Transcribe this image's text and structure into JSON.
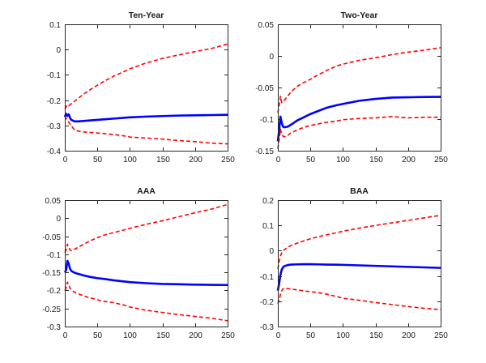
{
  "figure": {
    "background": "#ffffff",
    "colors": {
      "median": "#0000ff",
      "band": "#ff0000",
      "axis": "#262626",
      "text": "#1a1a1a"
    }
  },
  "chart_data": [
    {
      "type": "line",
      "title": "Ten-Year",
      "xlabel": "",
      "ylabel": "",
      "xlim": [
        0,
        250
      ],
      "ylim": [
        -0.4,
        0.1
      ],
      "grid": false,
      "legend": "none",
      "xticks": [
        0,
        50,
        100,
        150,
        200,
        250
      ],
      "xtick_labels": [
        "0",
        "50",
        "100",
        "150",
        "200",
        "250"
      ],
      "yticks": [
        0.1,
        0,
        -0.1,
        -0.2,
        -0.3,
        -0.4
      ],
      "ytick_labels": [
        "0.1",
        "0",
        "-0.1",
        "-0.2",
        "-0.3",
        "-0.4"
      ],
      "x": [
        0,
        2,
        4,
        6,
        8,
        10,
        15,
        20,
        30,
        40,
        50,
        60,
        75,
        90,
        100,
        125,
        150,
        175,
        200,
        225,
        250
      ],
      "series": [
        {
          "name": "upper-band",
          "style": "dashed",
          "color": "#ff0000",
          "width": 1.6,
          "values": [
            -0.235,
            -0.226,
            -0.218,
            -0.222,
            -0.218,
            -0.214,
            -0.204,
            -0.194,
            -0.174,
            -0.157,
            -0.141,
            -0.126,
            -0.105,
            -0.088,
            -0.076,
            -0.053,
            -0.035,
            -0.021,
            -0.008,
            0.004,
            0.022
          ]
        },
        {
          "name": "lower-band",
          "style": "dashed",
          "color": "#ff0000",
          "width": 1.6,
          "values": [
            -0.262,
            -0.272,
            -0.28,
            -0.287,
            -0.294,
            -0.302,
            -0.318,
            -0.322,
            -0.326,
            -0.328,
            -0.33,
            -0.332,
            -0.336,
            -0.341,
            -0.346,
            -0.35,
            -0.354,
            -0.36,
            -0.364,
            -0.37,
            -0.373
          ]
        },
        {
          "name": "median",
          "style": "solid",
          "color": "#0000ff",
          "width": 2.6,
          "values": [
            -0.266,
            -0.254,
            -0.262,
            -0.256,
            -0.27,
            -0.278,
            -0.284,
            -0.284,
            -0.282,
            -0.28,
            -0.278,
            -0.276,
            -0.273,
            -0.27,
            -0.268,
            -0.265,
            -0.263,
            -0.261,
            -0.26,
            -0.259,
            -0.258
          ]
        }
      ]
    },
    {
      "type": "line",
      "title": "Two-Year",
      "xlabel": "",
      "ylabel": "",
      "xlim": [
        0,
        250
      ],
      "ylim": [
        -0.15,
        0.05
      ],
      "grid": false,
      "legend": "none",
      "xticks": [
        0,
        50,
        100,
        150,
        200,
        250
      ],
      "xtick_labels": [
        "0",
        "50",
        "100",
        "150",
        "200",
        "250"
      ],
      "yticks": [
        0.05,
        0,
        -0.05,
        -0.1,
        -0.15
      ],
      "ytick_labels": [
        "0.05",
        "0",
        "-0.05",
        "-0.1",
        "-0.15"
      ],
      "x": [
        0,
        2,
        4,
        6,
        8,
        10,
        15,
        20,
        30,
        40,
        50,
        60,
        75,
        90,
        100,
        125,
        150,
        175,
        200,
        225,
        250
      ],
      "series": [
        {
          "name": "upper-band",
          "style": "dashed",
          "color": "#ff0000",
          "width": 1.6,
          "values": [
            -0.09,
            -0.079,
            -0.064,
            -0.074,
            -0.072,
            -0.07,
            -0.064,
            -0.057,
            -0.048,
            -0.042,
            -0.037,
            -0.031,
            -0.023,
            -0.016,
            -0.013,
            -0.007,
            -0.003,
            0.002,
            0.006,
            0.009,
            0.013
          ]
        },
        {
          "name": "lower-band",
          "style": "dashed",
          "color": "#ff0000",
          "width": 1.6,
          "values": [
            -0.147,
            -0.133,
            -0.116,
            -0.124,
            -0.127,
            -0.128,
            -0.126,
            -0.122,
            -0.117,
            -0.113,
            -0.11,
            -0.108,
            -0.105,
            -0.103,
            -0.101,
            -0.099,
            -0.098,
            -0.096,
            -0.098,
            -0.097,
            -0.097
          ]
        },
        {
          "name": "median",
          "style": "solid",
          "color": "#0000ff",
          "width": 2.6,
          "values": [
            -0.135,
            -0.118,
            -0.096,
            -0.106,
            -0.112,
            -0.113,
            -0.112,
            -0.109,
            -0.102,
            -0.097,
            -0.092,
            -0.088,
            -0.082,
            -0.078,
            -0.076,
            -0.071,
            -0.068,
            -0.066,
            -0.0655,
            -0.065,
            -0.0648
          ]
        }
      ]
    },
    {
      "type": "line",
      "title": "AAA",
      "xlabel": "",
      "ylabel": "",
      "xlim": [
        0,
        250
      ],
      "ylim": [
        -0.3,
        0.05
      ],
      "grid": false,
      "legend": "none",
      "xticks": [
        0,
        50,
        100,
        150,
        200,
        250
      ],
      "xtick_labels": [
        "0",
        "50",
        "100",
        "150",
        "200",
        "250"
      ],
      "yticks": [
        0.05,
        0,
        -0.05,
        -0.1,
        -0.15,
        -0.2,
        -0.25,
        -0.3
      ],
      "ytick_labels": [
        "0.05",
        "0",
        "-0.05",
        "-0.1",
        "-0.15",
        "-0.2",
        "-0.25",
        "-0.3"
      ],
      "x": [
        0,
        2,
        4,
        6,
        8,
        10,
        15,
        20,
        30,
        40,
        50,
        60,
        75,
        90,
        100,
        125,
        150,
        175,
        200,
        225,
        250
      ],
      "series": [
        {
          "name": "upper-band",
          "style": "dashed",
          "color": "#ff0000",
          "width": 1.6,
          "values": [
            -0.095,
            -0.088,
            -0.072,
            -0.08,
            -0.088,
            -0.09,
            -0.086,
            -0.081,
            -0.071,
            -0.062,
            -0.054,
            -0.047,
            -0.04,
            -0.033,
            -0.028,
            -0.017,
            -0.007,
            0.004,
            0.015,
            0.025,
            0.038
          ]
        },
        {
          "name": "lower-band",
          "style": "dashed",
          "color": "#ff0000",
          "width": 1.6,
          "values": [
            -0.2,
            -0.193,
            -0.177,
            -0.185,
            -0.194,
            -0.199,
            -0.205,
            -0.209,
            -0.216,
            -0.221,
            -0.226,
            -0.23,
            -0.234,
            -0.24,
            -0.246,
            -0.255,
            -0.261,
            -0.267,
            -0.272,
            -0.277,
            -0.284
          ]
        },
        {
          "name": "median",
          "style": "solid",
          "color": "#0000ff",
          "width": 2.6,
          "values": [
            -0.15,
            -0.144,
            -0.118,
            -0.126,
            -0.14,
            -0.146,
            -0.151,
            -0.154,
            -0.159,
            -0.163,
            -0.166,
            -0.168,
            -0.172,
            -0.175,
            -0.177,
            -0.18,
            -0.182,
            -0.183,
            -0.184,
            -0.1845,
            -0.185
          ]
        }
      ]
    },
    {
      "type": "line",
      "title": "BAA",
      "xlabel": "",
      "ylabel": "",
      "xlim": [
        0,
        250
      ],
      "ylim": [
        -0.3,
        0.2
      ],
      "grid": false,
      "legend": "none",
      "xticks": [
        0,
        50,
        100,
        150,
        200,
        250
      ],
      "xtick_labels": [
        "0",
        "50",
        "100",
        "150",
        "200",
        "250"
      ],
      "yticks": [
        0.2,
        0.1,
        0,
        -0.1,
        -0.2,
        -0.3
      ],
      "ytick_labels": [
        "0.2",
        "0.1",
        "0",
        "-0.1",
        "-0.2",
        "-0.3"
      ],
      "x": [
        0,
        2,
        4,
        6,
        8,
        10,
        15,
        20,
        30,
        40,
        50,
        60,
        75,
        90,
        100,
        125,
        150,
        175,
        200,
        225,
        250
      ],
      "series": [
        {
          "name": "upper-band",
          "style": "dashed",
          "color": "#ff0000",
          "width": 1.6,
          "values": [
            -0.072,
            -0.045,
            -0.022,
            -0.008,
            0.0,
            0.004,
            0.013,
            0.02,
            0.03,
            0.039,
            0.047,
            0.054,
            0.063,
            0.071,
            0.077,
            0.089,
            0.1,
            0.11,
            0.12,
            0.13,
            0.14
          ]
        },
        {
          "name": "lower-band",
          "style": "dashed",
          "color": "#ff0000",
          "width": 1.6,
          "values": [
            -0.21,
            -0.195,
            -0.172,
            -0.158,
            -0.151,
            -0.148,
            -0.15,
            -0.152,
            -0.155,
            -0.159,
            -0.162,
            -0.165,
            -0.172,
            -0.181,
            -0.188,
            -0.196,
            -0.205,
            -0.213,
            -0.221,
            -0.228,
            -0.233
          ]
        },
        {
          "name": "median",
          "style": "solid",
          "color": "#0000ff",
          "width": 2.6,
          "values": [
            -0.158,
            -0.13,
            -0.095,
            -0.075,
            -0.066,
            -0.061,
            -0.057,
            -0.055,
            -0.054,
            -0.0535,
            -0.0535,
            -0.054,
            -0.055,
            -0.0555,
            -0.056,
            -0.058,
            -0.06,
            -0.062,
            -0.064,
            -0.066,
            -0.068
          ]
        }
      ]
    }
  ]
}
